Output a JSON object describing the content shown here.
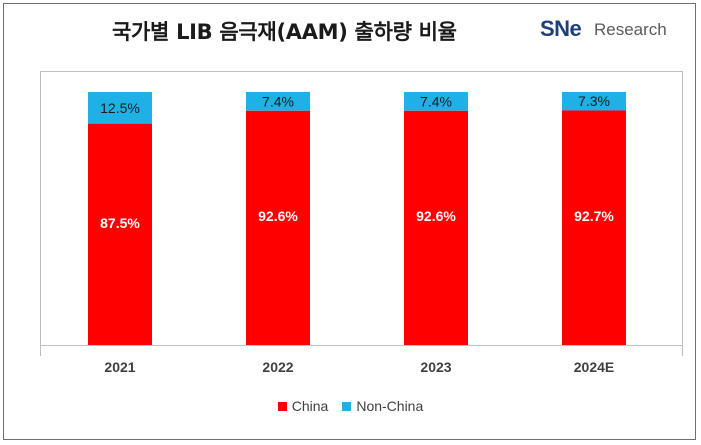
{
  "title": "국가별 LIB 음극재(AAM) 출하량 비율",
  "logo": {
    "brand": "SNe",
    "suffix": "Research"
  },
  "colors": {
    "china": "#ff0000",
    "non_china": "#1fb0e6"
  },
  "chart_data": {
    "type": "bar",
    "stacked": true,
    "percent_scale": true,
    "categories": [
      "2021",
      "2022",
      "2023",
      "2024E"
    ],
    "series": [
      {
        "name": "China",
        "values": [
          87.5,
          92.6,
          92.6,
          92.7
        ],
        "labels": [
          "87.5%",
          "92.6%",
          "92.6%",
          "92.7%"
        ]
      },
      {
        "name": "Non-China",
        "values": [
          12.5,
          7.4,
          7.4,
          7.3
        ],
        "labels": [
          "12.5%",
          "7.4%",
          "7.4%",
          "7.3%"
        ]
      }
    ],
    "ylim": [
      0,
      100
    ],
    "grid": false,
    "legend_position": "bottom"
  }
}
